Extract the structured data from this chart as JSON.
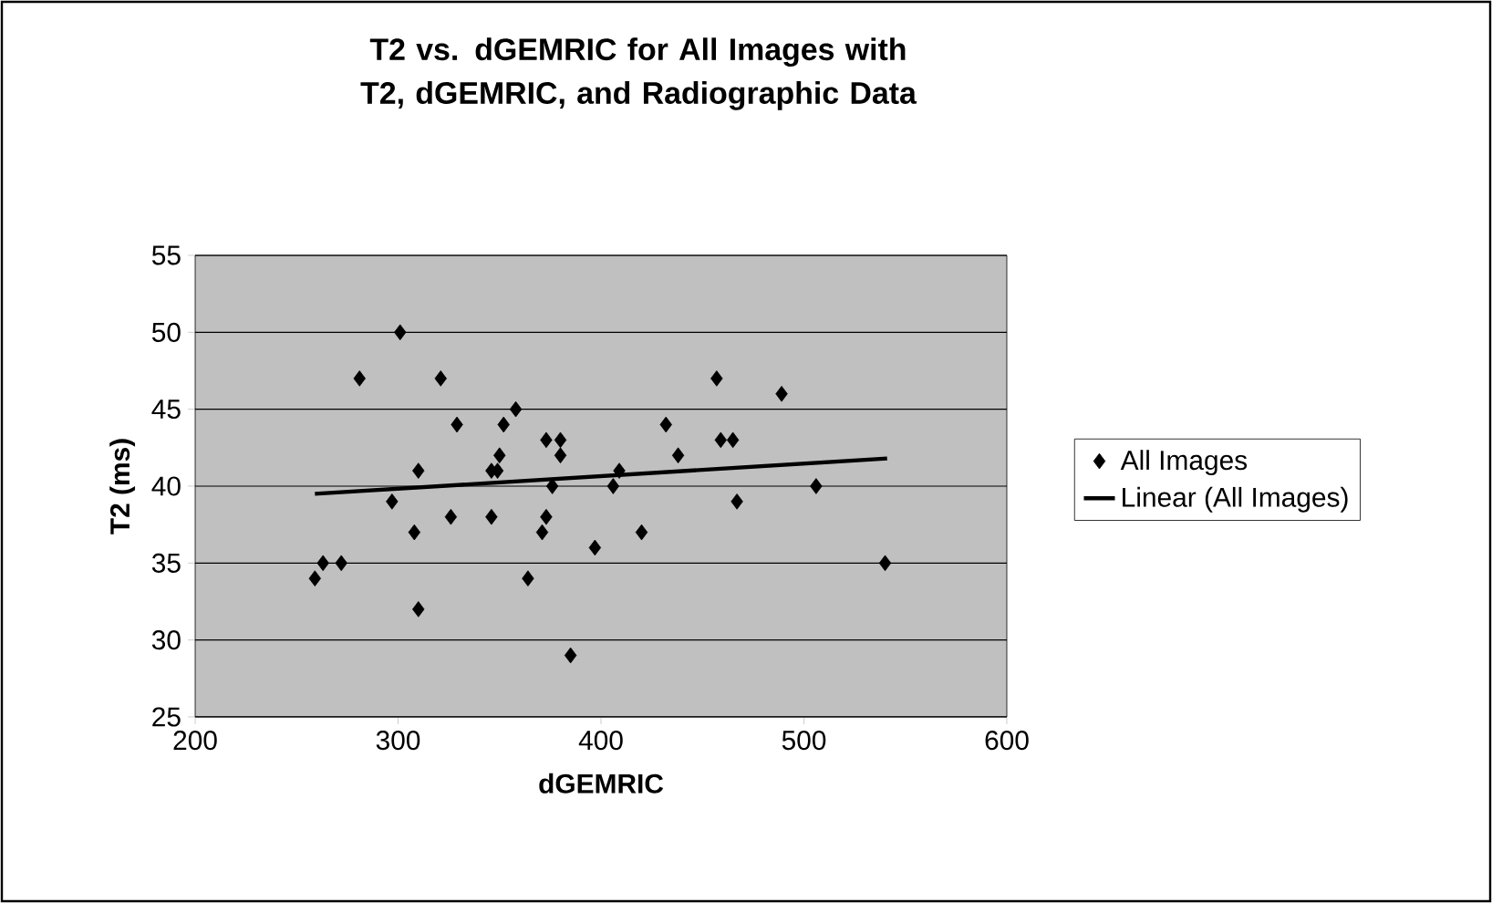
{
  "chart_data": {
    "type": "scatter",
    "title": "T2 vs. dGEMRIC for All Images with T2, dGEMRIC, and Radiographic Data",
    "xlabel": "dGEMRIC",
    "ylabel": "T2 (ms)",
    "series": [
      {
        "name": "All Images",
        "type": "scatter",
        "color": "#000000",
        "marker": "diamond",
        "x": [
          259,
          263,
          272,
          281,
          301,
          297,
          310,
          308,
          310,
          321,
          326,
          329,
          346,
          346,
          349,
          350,
          352,
          358,
          364,
          373,
          380,
          380,
          373,
          371,
          376,
          385,
          397,
          406,
          409,
          420,
          432,
          438,
          457,
          459,
          465,
          467,
          489,
          506,
          540
        ],
        "values": [
          34,
          35,
          35,
          47,
          50,
          39,
          41,
          37,
          32,
          47,
          38,
          44,
          38,
          41,
          41,
          42,
          44,
          45,
          34,
          43,
          43,
          42,
          38,
          37,
          40,
          29,
          36,
          40,
          41,
          37,
          44,
          42,
          47,
          43,
          43,
          39,
          46,
          40,
          35
        ]
      },
      {
        "name": "Linear (All Images)",
        "type": "line",
        "color": "#000000",
        "line_style": "solid",
        "x": [
          259,
          541
        ],
        "values": [
          39.5,
          41.8
        ]
      }
    ],
    "xlim": [
      200,
      600
    ],
    "ylim": [
      25,
      55
    ],
    "xticks": [
      200,
      300,
      400,
      500,
      600
    ],
    "yticks": [
      25,
      30,
      35,
      40,
      45,
      50,
      55
    ],
    "grid": "y",
    "legend": "right"
  }
}
